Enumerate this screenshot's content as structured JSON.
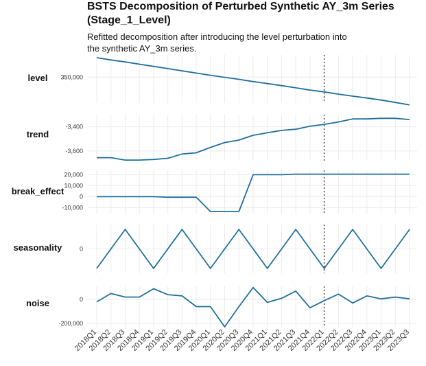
{
  "title_line1": "BSTS Decomposition of Perturbed Synthetic AY_3m Series",
  "title_line2": "(Stage_1_Level)",
  "subtitle_line1": "Refitted decomposition after introducing the level perturbation into",
  "subtitle_line2": "the synthetic AY_3m series.",
  "colors": {
    "line": "#1f6e9c",
    "vline": "#555555",
    "grid": "#ebebeb"
  },
  "chart_data": {
    "type": "line",
    "x_ticks": [
      "2018Q1",
      "2018Q2",
      "2018Q3",
      "2018Q4",
      "2019Q1",
      "2019Q2",
      "2019Q3",
      "2019Q4",
      "2020Q1",
      "2020Q2",
      "2020Q3",
      "2020Q4",
      "2021Q1",
      "2021Q2",
      "2021Q3",
      "2021Q4",
      "2022Q1",
      "2022Q2",
      "2022Q3",
      "2022Q4",
      "2023Q1",
      "2023Q2",
      "2023Q3"
    ],
    "vertical_marker": "2022Q1",
    "panels": [
      {
        "name": "level",
        "ylim": [
          336000,
          362000
        ],
        "y_ticks": [
          {
            "value": 350000,
            "label": "350,000"
          }
        ],
        "values": [
          360500,
          359300,
          358200,
          357000,
          355800,
          354600,
          353400,
          352200,
          351000,
          349900,
          348800,
          347600,
          346500,
          345400,
          344200,
          343000,
          342000,
          340800,
          339700,
          338700,
          337600,
          336300,
          335000
        ]
      },
      {
        "name": "trend",
        "ylim": [
          -3680,
          -3300
        ],
        "y_ticks": [
          {
            "value": -3400,
            "label": "-3,400"
          },
          {
            "value": -3600,
            "label": "-3,600"
          }
        ],
        "values": [
          -3655,
          -3655,
          -3675,
          -3675,
          -3670,
          -3660,
          -3625,
          -3615,
          -3570,
          -3530,
          -3510,
          -3470,
          -3450,
          -3430,
          -3420,
          -3395,
          -3380,
          -3360,
          -3335,
          -3335,
          -3330,
          -3330,
          -3340
        ]
      },
      {
        "name": "break_effect",
        "ylim": [
          -16000,
          24000
        ],
        "y_ticks": [
          {
            "value": 20000,
            "label": "20,000"
          },
          {
            "value": 10000,
            "label": "10,000"
          },
          {
            "value": 0,
            "label": "0"
          },
          {
            "value": -10000,
            "label": "-10,000"
          }
        ],
        "values": [
          0,
          0,
          0,
          0,
          0,
          -500,
          -500,
          -500,
          -13500,
          -13500,
          -13500,
          20000,
          20000,
          20000,
          20500,
          20500,
          20500,
          20500,
          20500,
          20500,
          20500,
          20500,
          20500
        ]
      },
      {
        "name": "seasonality",
        "ylim": [
          -1.25,
          1.25
        ],
        "y_ticks": [
          {
            "value": 0,
            "label": "0"
          }
        ],
        "values": [
          -1,
          0,
          1,
          0,
          -1,
          0,
          1,
          0,
          -1,
          0,
          1,
          0,
          -1,
          0,
          1,
          0,
          -1,
          0,
          1,
          0,
          -1,
          0,
          1
        ]
      },
      {
        "name": "noise",
        "ylim": [
          -230000,
          110000
        ],
        "y_ticks": [
          {
            "value": 0,
            "label": "0"
          },
          {
            "value": -200000,
            "label": "-200,000"
          }
        ],
        "values": [
          -20000,
          50000,
          20000,
          20000,
          90000,
          40000,
          30000,
          -60000,
          -60000,
          -230000,
          -60000,
          100000,
          -25000,
          10000,
          70000,
          -70000,
          -10000,
          45000,
          -30000,
          30000,
          5000,
          20000,
          5000
        ]
      }
    ]
  }
}
